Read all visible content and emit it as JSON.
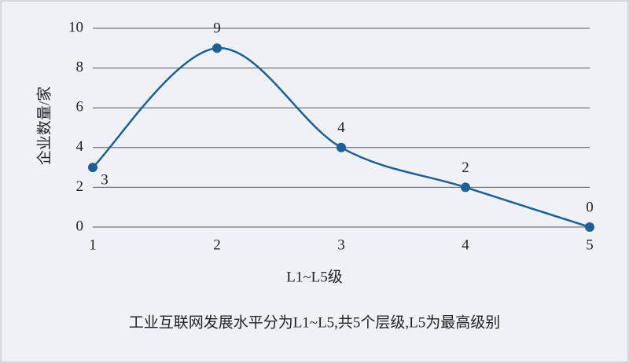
{
  "chart_data": {
    "type": "line",
    "y_label": "企业数量/家",
    "x_label": "L1~L5级",
    "caption": "工业互联网发展水平分为L1~L5,共5个层级,L5为最高级别",
    "x": [
      1,
      2,
      3,
      4,
      5
    ],
    "values": [
      3,
      9,
      4,
      2,
      0
    ],
    "color": "#1f5f96",
    "xlim": [
      1,
      5
    ],
    "xticks": [
      1,
      2,
      3,
      4,
      5
    ],
    "ylim": [
      0,
      10
    ],
    "yticks": [
      0,
      2,
      4,
      6,
      8,
      10
    ],
    "grid": true,
    "smooth": true
  }
}
